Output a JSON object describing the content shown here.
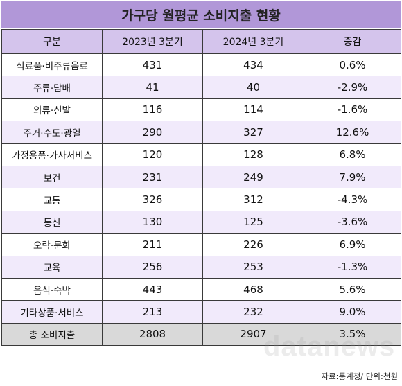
{
  "title": "가구당 월평균 소비지출 현황",
  "table": {
    "headers": [
      "구분",
      "2023년 3분기",
      "2024년 3분기",
      "증감"
    ],
    "rows": [
      {
        "category": "식료품·비주류음료",
        "y2023": "431",
        "y2024": "434",
        "change": "0.6%"
      },
      {
        "category": "주류·담배",
        "y2023": "41",
        "y2024": "40",
        "change": "-2.9%"
      },
      {
        "category": "의류·신발",
        "y2023": "116",
        "y2024": "114",
        "change": "-1.6%"
      },
      {
        "category": "주거·수도·광열",
        "y2023": "290",
        "y2024": "327",
        "change": "12.6%"
      },
      {
        "category": "가정용품·가사서비스",
        "y2023": "120",
        "y2024": "128",
        "change": "6.8%"
      },
      {
        "category": "보건",
        "y2023": "231",
        "y2024": "249",
        "change": "7.9%"
      },
      {
        "category": "교통",
        "y2023": "326",
        "y2024": "312",
        "change": "-4.3%"
      },
      {
        "category": "통신",
        "y2023": "130",
        "y2024": "125",
        "change": "-3.6%"
      },
      {
        "category": "오락·문화",
        "y2023": "211",
        "y2024": "226",
        "change": "6.9%"
      },
      {
        "category": "교육",
        "y2023": "256",
        "y2024": "253",
        "change": "-1.3%"
      },
      {
        "category": "음식·숙박",
        "y2023": "443",
        "y2024": "468",
        "change": "5.6%"
      },
      {
        "category": "기타상품·서비스",
        "y2023": "213",
        "y2024": "232",
        "change": "9.0%"
      },
      {
        "category": "총 소비지출",
        "y2023": "2808",
        "y2024": "2907",
        "change": "3.5%"
      }
    ]
  },
  "watermark": "datanews",
  "source": "자료:통계청/ 단위:천원",
  "colors": {
    "title_bg": "#b197d8",
    "header_bg": "#d4c4ec",
    "alt_row_bg": "#f1eafb",
    "total_row_bg": "#d9d9d9"
  }
}
